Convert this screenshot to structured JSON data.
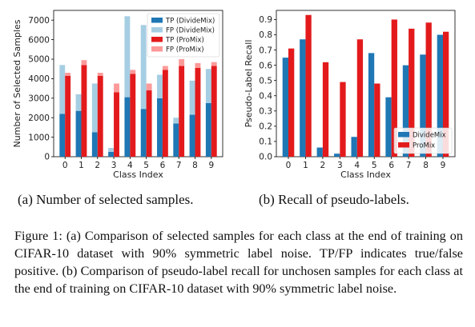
{
  "chart_data": [
    {
      "type": "bar",
      "title": "",
      "xlabel": "Class Index",
      "ylabel": "Number of Selected Samples",
      "categories": [
        "0",
        "1",
        "2",
        "3",
        "4",
        "5",
        "6",
        "7",
        "8",
        "9"
      ],
      "ylim": [
        0,
        7500
      ],
      "yticks": [
        0,
        1000,
        2000,
        3000,
        4000,
        5000,
        6000,
        7000
      ],
      "stacked_pairs": true,
      "legend_position": "top-right",
      "series": [
        {
          "name": "TP (DivideMix)",
          "group": "DivideMix",
          "color": "#1f77b4",
          "values": [
            2200,
            2350,
            1250,
            250,
            3050,
            2450,
            3000,
            1700,
            2150,
            2750
          ]
        },
        {
          "name": "FP (DivideMix)",
          "group": "DivideMix",
          "color": "#a6cee3",
          "values": [
            2500,
            850,
            2500,
            200,
            4150,
            4300,
            1200,
            300,
            1750,
            1750
          ]
        },
        {
          "name": "TP (ProMix)",
          "group": "ProMix",
          "color": "#e31a1c",
          "values": [
            4150,
            4700,
            4150,
            3300,
            4250,
            3400,
            4450,
            4650,
            4550,
            4650
          ]
        },
        {
          "name": "FP (ProMix)",
          "group": "ProMix",
          "color": "#fb9a99",
          "values": [
            150,
            250,
            150,
            450,
            200,
            350,
            200,
            350,
            250,
            200
          ]
        }
      ]
    },
    {
      "type": "bar",
      "title": "",
      "xlabel": "Class Index",
      "ylabel": "Pseudo-Label Recall",
      "categories": [
        "0",
        "1",
        "2",
        "3",
        "4",
        "5",
        "6",
        "7",
        "8",
        "9"
      ],
      "ylim": [
        0,
        0.96
      ],
      "yticks": [
        "0.0",
        "0.1",
        "0.2",
        "0.3",
        "0.4",
        "0.5",
        "0.6",
        "0.7",
        "0.8",
        "0.9"
      ],
      "legend_position": "lower-right",
      "series": [
        {
          "name": "DivideMix",
          "color": "#1f77b4",
          "values": [
            0.65,
            0.77,
            0.06,
            0.02,
            0.13,
            0.68,
            0.39,
            0.6,
            0.67,
            0.8
          ]
        },
        {
          "name": "ProMix",
          "color": "#e31a1c",
          "values": [
            0.71,
            0.93,
            0.62,
            0.49,
            0.77,
            0.48,
            0.9,
            0.84,
            0.88,
            0.82
          ]
        }
      ]
    }
  ],
  "captions": {
    "sub_a": "(a) Number of selected samples.",
    "sub_b": "(b) Recall of pseudo-labels.",
    "figure": "Figure 1: (a) Comparison of selected samples for each class at the end of training on CIFAR-10 dataset with 90% symmetric label noise. TP/FP indicates true/false positive. (b) Comparison of pseudo-label recall for unchosen samples for each class at the end of training on CIFAR-10 dataset with 90% symmetric label noise."
  }
}
